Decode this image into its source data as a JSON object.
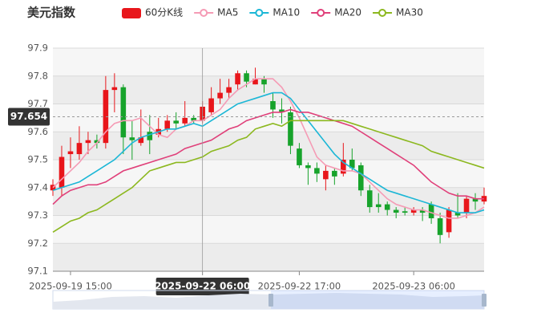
{
  "chart_data": {
    "type": "candlestick",
    "title": "美元指数",
    "categories": [
      null,
      null,
      "2025-09-19 15:00",
      null,
      null,
      null,
      null,
      null,
      null,
      null,
      null,
      null,
      null,
      null,
      null,
      null,
      null,
      "2025-09-22 06:00",
      null,
      null,
      null,
      null,
      null,
      null,
      null,
      null,
      null,
      null,
      "2025-09-22 17:00",
      null,
      null,
      null,
      null,
      null,
      null,
      null,
      null,
      null,
      null,
      null,
      null,
      "2025-09-23 06:00",
      null,
      null,
      null,
      null,
      null,
      null,
      null,
      null
    ],
    "candles": {
      "name": "60分K线",
      "color_up": "#e8161b",
      "color_down": "#17a32b",
      "open": [
        97.39,
        97.4,
        97.52,
        97.52,
        97.56,
        97.57,
        97.56,
        97.75,
        97.76,
        97.58,
        97.56,
        97.6,
        97.59,
        97.61,
        97.64,
        97.63,
        97.65,
        97.64,
        97.67,
        97.72,
        97.74,
        97.77,
        97.81,
        97.77,
        97.79,
        97.71,
        97.68,
        97.67,
        97.54,
        97.48,
        97.47,
        97.43,
        97.46,
        97.45,
        97.5,
        97.48,
        97.39,
        97.34,
        97.34,
        97.32,
        97.315,
        97.31,
        97.32,
        97.34,
        97.29,
        97.24,
        97.31,
        97.31,
        97.36,
        97.35
      ],
      "close": [
        97.41,
        97.51,
        97.53,
        97.56,
        97.57,
        97.56,
        97.75,
        97.76,
        97.58,
        97.57,
        97.58,
        97.57,
        97.61,
        97.64,
        97.63,
        97.65,
        97.64,
        97.69,
        97.72,
        97.74,
        97.76,
        97.81,
        97.78,
        97.79,
        97.77,
        97.68,
        97.67,
        97.55,
        97.48,
        97.47,
        97.45,
        97.46,
        97.44,
        97.5,
        97.47,
        97.39,
        97.33,
        97.33,
        97.32,
        97.31,
        97.31,
        97.32,
        97.31,
        97.29,
        97.23,
        97.32,
        97.3,
        97.36,
        97.35,
        97.37
      ],
      "high": [
        97.43,
        97.55,
        97.58,
        97.62,
        97.6,
        97.59,
        97.8,
        97.81,
        97.77,
        97.64,
        97.68,
        97.66,
        97.65,
        97.66,
        97.67,
        97.71,
        97.66,
        97.71,
        97.76,
        97.79,
        97.79,
        97.82,
        97.82,
        97.83,
        97.8,
        97.74,
        97.72,
        97.69,
        97.56,
        97.49,
        97.49,
        97.48,
        97.47,
        97.56,
        97.54,
        97.49,
        97.41,
        97.38,
        97.35,
        97.33,
        97.33,
        97.33,
        97.33,
        97.35,
        97.31,
        97.33,
        97.38,
        97.37,
        97.38,
        97.4
      ],
      "low": [
        97.37,
        97.37,
        97.47,
        97.5,
        97.52,
        97.54,
        97.54,
        97.67,
        97.52,
        97.5,
        97.55,
        97.52,
        97.58,
        97.6,
        97.61,
        97.62,
        97.63,
        97.63,
        97.66,
        97.7,
        97.72,
        97.75,
        97.76,
        97.77,
        97.74,
        97.65,
        97.63,
        97.52,
        97.47,
        97.41,
        97.42,
        97.39,
        97.41,
        97.44,
        97.46,
        97.37,
        97.31,
        97.31,
        97.3,
        97.29,
        97.3,
        97.3,
        97.28,
        97.27,
        97.2,
        97.22,
        97.29,
        97.29,
        97.32,
        97.34
      ]
    },
    "series": [
      {
        "name": "MA5",
        "color": "#f59bb5",
        "values": [
          97.4,
          97.43,
          97.46,
          97.49,
          97.53,
          97.56,
          97.6,
          97.63,
          97.64,
          97.64,
          97.65,
          97.62,
          97.59,
          97.58,
          97.61,
          97.62,
          97.64,
          97.64,
          97.66,
          97.68,
          97.72,
          97.75,
          97.77,
          97.79,
          97.79,
          97.79,
          97.76,
          97.71,
          97.65,
          97.58,
          97.51,
          97.48,
          97.47,
          97.46,
          97.46,
          97.45,
          97.42,
          97.39,
          97.36,
          97.34,
          97.33,
          97.32,
          97.32,
          97.31,
          97.3,
          97.29,
          97.29,
          97.3,
          97.31,
          97.33
        ]
      },
      {
        "name": "MA10",
        "color": "#1cb7d6",
        "values": [
          97.39,
          97.4,
          97.41,
          97.42,
          97.44,
          97.46,
          97.48,
          97.5,
          97.53,
          97.56,
          97.58,
          97.59,
          97.6,
          97.61,
          97.61,
          97.62,
          97.63,
          97.62,
          97.64,
          97.66,
          97.68,
          97.7,
          97.71,
          97.72,
          97.73,
          97.74,
          97.74,
          97.72,
          97.68,
          97.64,
          97.6,
          97.56,
          97.52,
          97.49,
          97.47,
          97.45,
          97.43,
          97.41,
          97.39,
          97.38,
          97.37,
          97.36,
          97.35,
          97.34,
          97.33,
          97.32,
          97.31,
          97.31,
          97.31,
          97.32
        ]
      },
      {
        "name": "MA20",
        "color": "#e0407a",
        "values": [
          97.34,
          97.37,
          97.39,
          97.4,
          97.41,
          97.41,
          97.42,
          97.44,
          97.46,
          97.47,
          97.48,
          97.49,
          97.5,
          97.51,
          97.52,
          97.54,
          97.55,
          97.56,
          97.57,
          97.59,
          97.61,
          97.62,
          97.64,
          97.65,
          97.66,
          97.67,
          97.67,
          97.68,
          97.67,
          97.67,
          97.66,
          97.65,
          97.64,
          97.63,
          97.62,
          97.6,
          97.58,
          97.56,
          97.54,
          97.52,
          97.5,
          97.48,
          97.45,
          97.42,
          97.4,
          97.38,
          97.37,
          97.37,
          97.36,
          97.36
        ]
      },
      {
        "name": "MA30",
        "color": "#8cb81f",
        "values": [
          97.24,
          97.26,
          97.28,
          97.29,
          97.31,
          97.32,
          97.34,
          97.36,
          97.38,
          97.4,
          97.43,
          97.46,
          97.47,
          97.48,
          97.49,
          97.49,
          97.5,
          97.51,
          97.53,
          97.54,
          97.55,
          97.57,
          97.58,
          97.61,
          97.62,
          97.63,
          97.62,
          97.64,
          97.64,
          97.64,
          97.64,
          97.64,
          97.64,
          97.64,
          97.63,
          97.62,
          97.61,
          97.6,
          97.59,
          97.58,
          97.57,
          97.56,
          97.55,
          97.53,
          97.52,
          97.51,
          97.5,
          97.49,
          97.48,
          97.47
        ]
      }
    ],
    "ylim": [
      97.1,
      97.9
    ],
    "yticks": [
      97.1,
      97.2,
      97.3,
      97.4,
      97.5,
      97.6,
      97.7,
      97.8,
      97.9
    ],
    "grid": true,
    "crosshair": {
      "x_label": "2025-09-22 06:00",
      "y_value": 97.654
    }
  }
}
